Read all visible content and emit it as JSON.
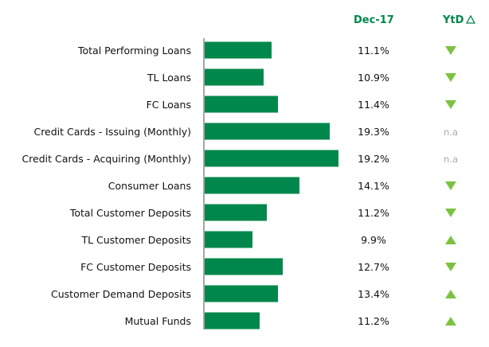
{
  "header": {
    "date_label": "Dec-17",
    "ytd_label": "YtD"
  },
  "colors": {
    "bar": "#00874b",
    "header": "#00874b",
    "arrow": "#7cc242",
    "na": "#aaaaaa",
    "axis": "#888888"
  },
  "chart_data": {
    "type": "bar",
    "orientation": "horizontal",
    "categories": [
      "Total Performing Loans",
      "TL Loans",
      "FC Loans",
      "Credit Cards - Issuing (Monthly)",
      "Credit Cards - Acquiring (Monthly)",
      "Consumer Loans",
      "Total Customer Deposits",
      "TL Customer Deposits",
      "FC Customer Deposits",
      "Customer Demand Deposits",
      "Mutual Funds"
    ],
    "value_labels": [
      "11.1%",
      "10.9%",
      "11.4%",
      "19.3%",
      "19.2%",
      "14.1%",
      "11.2%",
      "9.9%",
      "12.7%",
      "13.4%",
      "11.2%"
    ],
    "bar_lengths": [
      8.4,
      7.4,
      9.2,
      15.7,
      16.8,
      11.9,
      7.8,
      6.0,
      9.8,
      9.2,
      6.9
    ],
    "xlim": [
      0,
      17
    ],
    "ytd_trend": [
      "down",
      "down",
      "down",
      "n.a",
      "n.a",
      "down",
      "down",
      "up",
      "down",
      "up",
      "up"
    ],
    "na_label": "n.a",
    "grid": false,
    "legend": "none"
  }
}
